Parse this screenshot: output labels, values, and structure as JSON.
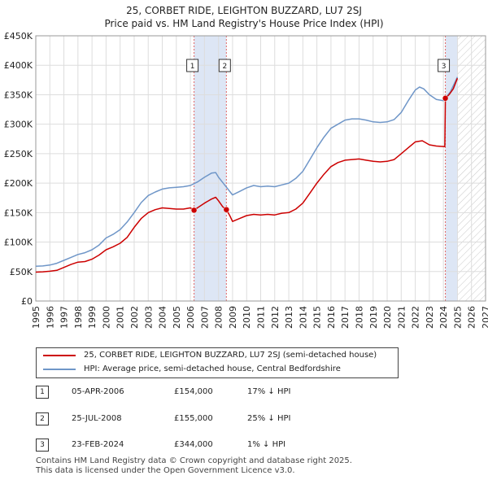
{
  "header": {
    "title_line1": "25, CORBET RIDE, LEIGHTON BUZZARD, LU7 2SJ",
    "title_line2": "Price paid vs. HM Land Registry's House Price Index (HPI)"
  },
  "legend": {
    "property_label": "25, CORBET RIDE, LEIGHTON BUZZARD, LU7 2SJ (semi-detached house)",
    "hpi_label": "HPI: Average price, semi-detached house, Central Bedfordshire"
  },
  "sales": [
    {
      "marker": "1",
      "date": "05-APR-2006",
      "price": "£154,000",
      "hpi_diff": "17% ↓ HPI"
    },
    {
      "marker": "2",
      "date": "25-JUL-2008",
      "price": "£155,000",
      "hpi_diff": "25% ↓ HPI"
    },
    {
      "marker": "3",
      "date": "23-FEB-2024",
      "price": "£344,000",
      "hpi_diff": "1% ↓ HPI"
    }
  ],
  "footer": {
    "line1": "Contains HM Land Registry data © Crown copyright and database right 2025.",
    "line2": "This data is licensed under the Open Government Licence v3.0."
  },
  "colors": {
    "property_line": "#cc0000",
    "hpi_line": "#6f96c8",
    "shade": "#dde6f5",
    "grid": "#dddddd"
  },
  "chart_data": {
    "type": "line",
    "title": "25, CORBET RIDE, LEIGHTON BUZZARD, LU7 2SJ — Price paid vs. HM Land Registry's House Price Index (HPI)",
    "xlabel": "",
    "ylabel": "",
    "xlim": [
      1995,
      2027
    ],
    "ylim": [
      0,
      450000
    ],
    "x_ticks": [
      1995,
      1996,
      1997,
      1998,
      1999,
      2000,
      2001,
      2002,
      2003,
      2004,
      2005,
      2006,
      2007,
      2008,
      2009,
      2010,
      2011,
      2012,
      2013,
      2014,
      2015,
      2016,
      2017,
      2018,
      2019,
      2020,
      2021,
      2022,
      2023,
      2024,
      2025,
      2026,
      2027
    ],
    "y_ticks": [
      0,
      50000,
      100000,
      150000,
      200000,
      250000,
      300000,
      350000,
      400000,
      450000
    ],
    "y_tick_labels": [
      "£0",
      "£50K",
      "£100K",
      "£150K",
      "£200K",
      "£250K",
      "£300K",
      "£350K",
      "£400K",
      "£450K"
    ],
    "grid": true,
    "shaded_ranges": [
      [
        2006.26,
        2008.56
      ],
      [
        2024.14,
        2025.0
      ]
    ],
    "future_hatch_from": 2025.0,
    "series": [
      {
        "name": "25, CORBET RIDE, LEIGHTON BUZZARD, LU7 2SJ (semi-detached house)",
        "color": "#cc0000",
        "x": [
          1995,
          1995.5,
          1996,
          1996.5,
          1997,
          1997.5,
          1998,
          1998.5,
          1999,
          1999.5,
          2000,
          2000.5,
          2001,
          2001.5,
          2002,
          2002.5,
          2003,
          2003.5,
          2004,
          2004.5,
          2005,
          2005.5,
          2006,
          2006.26,
          2006.5,
          2007,
          2007.5,
          2007.8,
          2008,
          2008.3,
          2008.56,
          2008.8,
          2009,
          2009.5,
          2010,
          2010.5,
          2011,
          2011.5,
          2012,
          2012.5,
          2013,
          2013.5,
          2014,
          2014.5,
          2015,
          2015.5,
          2016,
          2016.5,
          2017,
          2017.5,
          2018,
          2018.5,
          2019,
          2019.5,
          2020,
          2020.5,
          2021,
          2021.5,
          2022,
          2022.5,
          2023,
          2023.5,
          2024.1,
          2024.14,
          2024.4,
          2024.7,
          2025.0
        ],
        "y": [
          49000,
          49500,
          50500,
          52000,
          57000,
          62000,
          66000,
          67000,
          71000,
          78000,
          87000,
          92000,
          98000,
          108000,
          125000,
          140000,
          150000,
          155000,
          158000,
          157000,
          156000,
          156000,
          158000,
          154000,
          158000,
          166000,
          173000,
          176000,
          170000,
          160000,
          155000,
          145000,
          135000,
          140000,
          145000,
          147000,
          146000,
          147000,
          146000,
          149000,
          150000,
          156000,
          166000,
          183000,
          200000,
          215000,
          228000,
          235000,
          239000,
          240000,
          241000,
          239000,
          237000,
          236000,
          237000,
          240000,
          250000,
          260000,
          270000,
          272000,
          265000,
          263000,
          262000,
          344000,
          350000,
          360000,
          378000
        ]
      },
      {
        "name": "HPI: Average price, semi-detached house, Central Bedfordshire",
        "color": "#6f96c8",
        "x": [
          1995,
          1995.5,
          1996,
          1996.5,
          1997,
          1997.5,
          1998,
          1998.5,
          1999,
          1999.5,
          2000,
          2000.5,
          2001,
          2001.5,
          2002,
          2002.5,
          2003,
          2003.5,
          2004,
          2004.5,
          2005,
          2005.5,
          2006,
          2006.5,
          2007,
          2007.5,
          2007.8,
          2008,
          2008.5,
          2009,
          2009.5,
          2010,
          2010.5,
          2011,
          2011.5,
          2012,
          2012.5,
          2013,
          2013.5,
          2014,
          2014.5,
          2015,
          2015.5,
          2016,
          2016.5,
          2017,
          2017.5,
          2018,
          2018.5,
          2019,
          2019.5,
          2020,
          2020.5,
          2021,
          2021.5,
          2022,
          2022.3,
          2022.6,
          2023,
          2023.5,
          2024,
          2024.5,
          2025.0
        ],
        "y": [
          59000,
          59500,
          61000,
          64000,
          69000,
          74000,
          79000,
          82000,
          87000,
          95000,
          107000,
          113000,
          121000,
          134000,
          150000,
          167000,
          179000,
          185000,
          190000,
          192000,
          193000,
          194000,
          196000,
          202000,
          210000,
          217000,
          218000,
          210000,
          195000,
          180000,
          186000,
          192000,
          196000,
          194000,
          195000,
          194000,
          197000,
          200000,
          208000,
          220000,
          240000,
          260000,
          278000,
          293000,
          300000,
          307000,
          309000,
          309000,
          307000,
          304000,
          303000,
          304000,
          308000,
          320000,
          340000,
          358000,
          363000,
          360000,
          350000,
          342000,
          340000,
          355000,
          380000
        ]
      }
    ],
    "annotations": [
      {
        "label": "1",
        "x": 2006.26,
        "y": 154000
      },
      {
        "label": "2",
        "x": 2008.56,
        "y": 155000
      },
      {
        "label": "3",
        "x": 2024.14,
        "y": 344000
      }
    ]
  }
}
